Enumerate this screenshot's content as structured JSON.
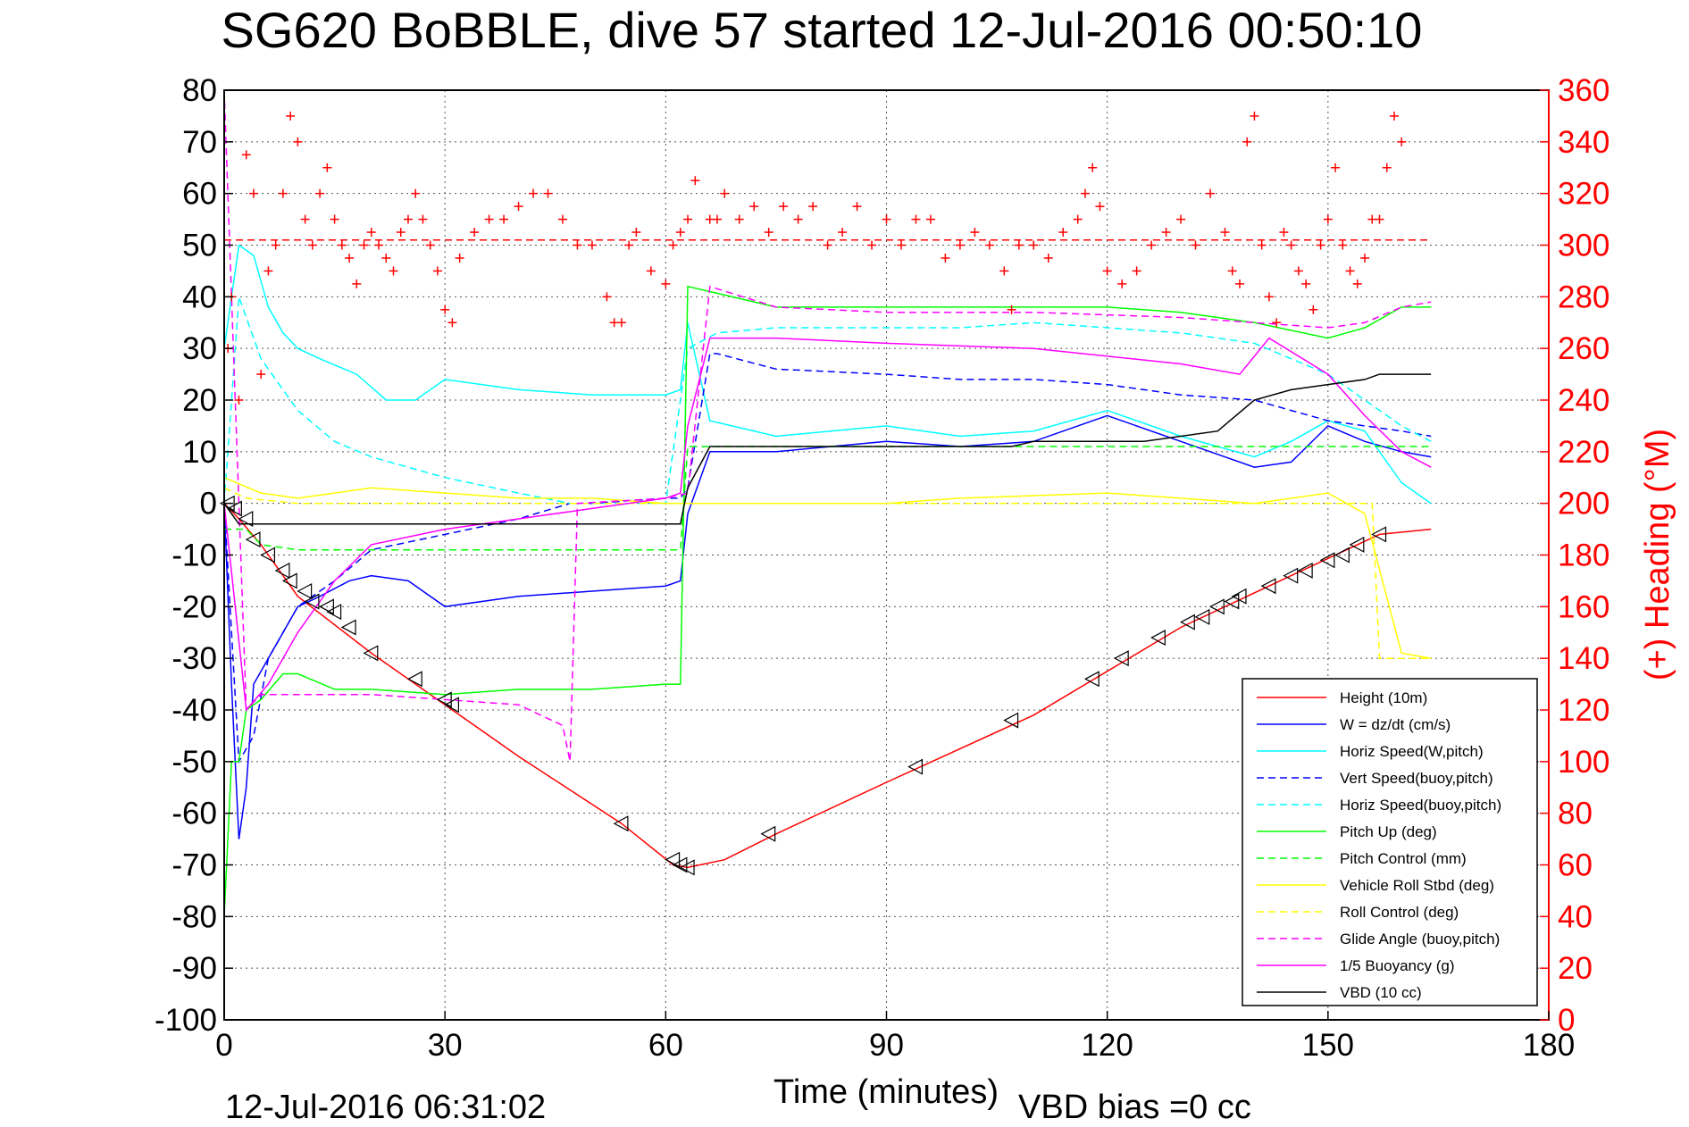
{
  "chart_data": {
    "type": "line",
    "title": "SG620 BoBBLE, dive 57 started 12-Jul-2016 00:50:10",
    "xlabel": "Time (minutes)",
    "ylabel": "",
    "ylabel_right": "(+) Heading (°M)",
    "xlim": [
      0,
      180
    ],
    "ylim": [
      -100,
      80
    ],
    "ylim_right": [
      0,
      360
    ],
    "x_ticks": [
      "0",
      "30",
      "60",
      "90",
      "120",
      "150",
      "180"
    ],
    "y_ticks": [
      "80",
      "70",
      "60",
      "50",
      "40",
      "30",
      "20",
      "10",
      "0",
      "-10",
      "-20",
      "-30",
      "-40",
      "-50",
      "-60",
      "-70",
      "-80",
      "-90",
      "-100"
    ],
    "y_right_ticks": [
      "360",
      "340",
      "320",
      "300",
      "280",
      "260",
      "240",
      "220",
      "200",
      "180",
      "160",
      "140",
      "120",
      "100",
      "80",
      "60",
      "40",
      "20",
      "0"
    ],
    "grid": true,
    "legend_position": "bottom-right",
    "footer_left": "12-Jul-2016 06:31:02",
    "footer_right": "VBD bias =0 cc",
    "heading_target": 302,
    "series": [
      {
        "name": "Height (10m)",
        "color": "#ff0000",
        "style": "solid",
        "x": [
          0,
          2,
          5,
          10,
          20,
          30,
          40,
          54,
          61,
          63,
          68,
          75,
          90,
          110,
          130,
          145,
          157,
          164
        ],
        "y": [
          0,
          -3,
          -8,
          -18,
          -29,
          -39,
          -49,
          -62,
          -70,
          -70.5,
          -69,
          -64,
          -54,
          -41,
          -24,
          -14,
          -6,
          -5
        ]
      },
      {
        "name": "W = dz/dt (cm/s)",
        "color": "#0000ff",
        "style": "solid",
        "x": [
          0,
          1,
          2,
          3,
          4,
          6,
          8,
          10,
          13,
          17,
          20,
          25,
          30,
          40,
          50,
          60,
          62,
          63,
          66,
          75,
          90,
          100,
          110,
          120,
          130,
          140,
          145,
          150,
          155,
          160,
          164
        ],
        "y": [
          0,
          -35,
          -65,
          -55,
          -35,
          -30,
          -25,
          -20,
          -18,
          -15,
          -14,
          -15,
          -20,
          -18,
          -17,
          -16,
          -15,
          -2,
          10,
          10,
          12,
          11,
          12,
          17,
          12,
          7,
          8,
          15,
          12,
          10,
          9
        ]
      },
      {
        "name": "Horiz Speed(W,pitch)",
        "color": "#00ffff",
        "style": "solid",
        "x": [
          0,
          2,
          4,
          6,
          8,
          10,
          13,
          18,
          22,
          26,
          30,
          40,
          50,
          60,
          62,
          63,
          66,
          75,
          90,
          100,
          110,
          120,
          130,
          140,
          145,
          150,
          155,
          160,
          164
        ],
        "y": [
          30,
          50,
          48,
          38,
          33,
          30,
          28,
          25,
          20,
          20,
          24,
          22,
          21,
          21,
          22,
          35,
          16,
          13,
          15,
          13,
          14,
          18,
          13,
          9,
          12,
          16,
          14,
          4,
          0
        ]
      },
      {
        "name": "Vert Speed(buoy,pitch)",
        "color": "#0000ff",
        "style": "dashed",
        "x": [
          0,
          2,
          4,
          6,
          8,
          10,
          15,
          20,
          30,
          40,
          47,
          50,
          60,
          62,
          63,
          66,
          67,
          75,
          90,
          100,
          110,
          120,
          125,
          130,
          140,
          145,
          150,
          155,
          160,
          164
        ],
        "y": [
          0,
          -50,
          -45,
          -30,
          -25,
          -20,
          -15,
          -9,
          -6,
          -3,
          0,
          0,
          1,
          1,
          3,
          29,
          29,
          26,
          25,
          24,
          24,
          23,
          22,
          21,
          20,
          18,
          16,
          15,
          14,
          13
        ]
      },
      {
        "name": "Horiz Speed(buoy,pitch)",
        "color": "#00ffff",
        "style": "dashed",
        "x": [
          0,
          2,
          5,
          10,
          15,
          20,
          30,
          40,
          47,
          60,
          63,
          67,
          75,
          90,
          100,
          110,
          120,
          130,
          140,
          145,
          150,
          155,
          160,
          164
        ],
        "y": [
          0,
          40,
          28,
          18,
          12,
          9,
          5,
          2,
          0,
          0,
          30,
          33,
          34,
          34,
          34,
          35,
          34,
          33,
          31,
          28,
          25,
          20,
          15,
          12
        ]
      },
      {
        "name": "Pitch Up (deg)",
        "color": "#00ff00",
        "style": "solid",
        "x": [
          0,
          1,
          2,
          3,
          5,
          8,
          10,
          15,
          20,
          30,
          40,
          50,
          60,
          62,
          63,
          66,
          75,
          90,
          100,
          110,
          120,
          130,
          140,
          150,
          155,
          160,
          164
        ],
        "y": [
          -80,
          -50,
          -50,
          -40,
          -38,
          -33,
          -33,
          -36,
          -36,
          -37,
          -36,
          -36,
          -35,
          -35,
          42,
          41,
          38,
          38,
          38,
          38,
          38,
          37,
          35,
          32,
          34,
          38,
          38
        ]
      },
      {
        "name": "Pitch Control (mm)",
        "color": "#00ff00",
        "style": "dashed",
        "x": [
          0,
          3,
          5,
          10,
          30,
          62,
          63,
          90,
          150,
          164
        ],
        "y": [
          -5,
          -5,
          -8,
          -9,
          -9,
          -9,
          11,
          11,
          11,
          11
        ]
      },
      {
        "name": "Vehicle Roll Stbd (deg)",
        "color": "#ffff00",
        "style": "solid",
        "x": [
          0,
          5,
          10,
          20,
          30,
          40,
          50,
          60,
          63,
          75,
          90,
          100,
          120,
          140,
          150,
          155,
          160,
          164
        ],
        "y": [
          5,
          2,
          1,
          3,
          2,
          1,
          1,
          0,
          0,
          0,
          0,
          1,
          2,
          0,
          2,
          -2,
          -29,
          -30
        ]
      },
      {
        "name": "Roll Control (deg)",
        "color": "#ffff00",
        "style": "dashed",
        "x": [
          0,
          3,
          10,
          30,
          60,
          63,
          90,
          120,
          150,
          156,
          157,
          164
        ],
        "y": [
          3,
          1,
          0,
          0,
          0,
          0,
          0,
          0,
          0,
          0,
          -30,
          -30
        ]
      },
      {
        "name": "Glide Angle (buoy,pitch)",
        "color": "#ff00ff",
        "style": "dashed",
        "x": [
          0,
          3,
          5,
          10,
          20,
          30,
          40,
          46,
          47,
          48,
          60,
          63,
          66,
          75,
          90,
          110,
          130,
          140,
          150,
          155,
          160,
          164
        ],
        "y": [
          80,
          -40,
          -37,
          -37,
          -37,
          -38,
          -39,
          -43,
          -50,
          0,
          1,
          2,
          42,
          38,
          37,
          37,
          36,
          35,
          34,
          35,
          38,
          39
        ]
      },
      {
        "name": "1/5 Buoyancy (g)",
        "color": "#ff00ff",
        "style": "solid",
        "x": [
          0,
          3,
          6,
          10,
          15,
          20,
          30,
          40,
          50,
          60,
          62,
          63,
          66,
          75,
          90,
          110,
          130,
          138,
          142,
          150,
          155,
          160,
          164
        ],
        "y": [
          0,
          -40,
          -35,
          -25,
          -15,
          -8,
          -5,
          -3,
          -1,
          1,
          2,
          15,
          32,
          32,
          31,
          30,
          27,
          25,
          32,
          25,
          17,
          10,
          7
        ]
      },
      {
        "name": "VBD (10 cc)",
        "color": "#000000",
        "style": "solid",
        "x": [
          0,
          2,
          60,
          62,
          63,
          66,
          75,
          90,
          107,
          110,
          125,
          135,
          140,
          145,
          150,
          155,
          157,
          164
        ],
        "y": [
          0,
          -4,
          -4,
          -4,
          3,
          11,
          11,
          11,
          11,
          12,
          12,
          14,
          20,
          22,
          23,
          24,
          25,
          25
        ]
      }
    ],
    "heading": {
      "name": "(+) Heading",
      "color": "#ff0000",
      "marker": "+",
      "x": [
        0.5,
        1,
        2,
        3,
        4,
        5,
        6,
        7,
        8,
        9,
        10,
        11,
        12,
        13,
        14,
        15,
        16,
        17,
        18,
        19,
        20,
        21,
        22,
        23,
        24,
        25,
        26,
        27,
        28,
        29,
        30,
        31,
        32,
        34,
        36,
        38,
        40,
        42,
        44,
        46,
        48,
        50,
        52,
        53,
        54,
        55,
        56,
        58,
        60,
        61,
        62,
        63,
        64,
        66,
        67,
        68,
        70,
        72,
        74,
        76,
        78,
        80,
        82,
        84,
        86,
        88,
        90,
        92,
        94,
        96,
        98,
        100,
        102,
        104,
        106,
        107,
        108,
        110,
        112,
        114,
        116,
        117,
        118,
        119,
        120,
        122,
        124,
        126,
        128,
        130,
        132,
        134,
        136,
        137,
        138,
        139,
        140,
        141,
        142,
        143,
        144,
        145,
        146,
        147,
        148,
        149,
        150,
        151,
        152,
        153,
        154,
        155,
        156,
        157,
        158,
        159,
        160
      ],
      "y": [
        260,
        280,
        240,
        335,
        320,
        250,
        290,
        300,
        320,
        350,
        340,
        310,
        300,
        320,
        330,
        310,
        300,
        295,
        285,
        300,
        305,
        300,
        295,
        290,
        305,
        310,
        320,
        310,
        300,
        290,
        275,
        270,
        295,
        305,
        310,
        310,
        315,
        320,
        320,
        310,
        300,
        300,
        280,
        270,
        270,
        300,
        305,
        290,
        285,
        300,
        305,
        310,
        325,
        310,
        310,
        320,
        310,
        315,
        305,
        315,
        310,
        315,
        300,
        305,
        315,
        300,
        310,
        300,
        310,
        310,
        295,
        300,
        305,
        300,
        290,
        275,
        300,
        300,
        295,
        305,
        310,
        320,
        330,
        315,
        290,
        285,
        290,
        300,
        305,
        310,
        300,
        320,
        305,
        290,
        285,
        340,
        350,
        300,
        280,
        270,
        305,
        300,
        290,
        285,
        275,
        300,
        310,
        330,
        300,
        290,
        285,
        295,
        310,
        310,
        330,
        350,
        340
      ]
    },
    "triangle_markers": {
      "x": [
        0.5,
        1.5,
        3,
        4,
        6,
        8,
        9,
        11,
        12,
        14,
        15,
        17,
        20,
        26,
        30,
        31,
        54,
        61,
        62,
        63,
        74,
        94,
        107,
        118,
        122,
        127,
        131,
        133,
        135,
        137,
        138,
        142,
        145,
        147,
        150,
        152,
        154,
        157
      ],
      "y": [
        0,
        -1,
        -3,
        -7,
        -10,
        -13,
        -15,
        -17,
        -19,
        -20,
        -21,
        -24,
        -29,
        -34,
        -38,
        -39,
        -62,
        -69,
        -70,
        -70.5,
        -64,
        -51,
        -42,
        -34,
        -30,
        -26,
        -23,
        -22,
        -20,
        -19,
        -18,
        -16,
        -14,
        -13,
        -11,
        -10,
        -8,
        -6
      ]
    }
  },
  "legend_title": ""
}
